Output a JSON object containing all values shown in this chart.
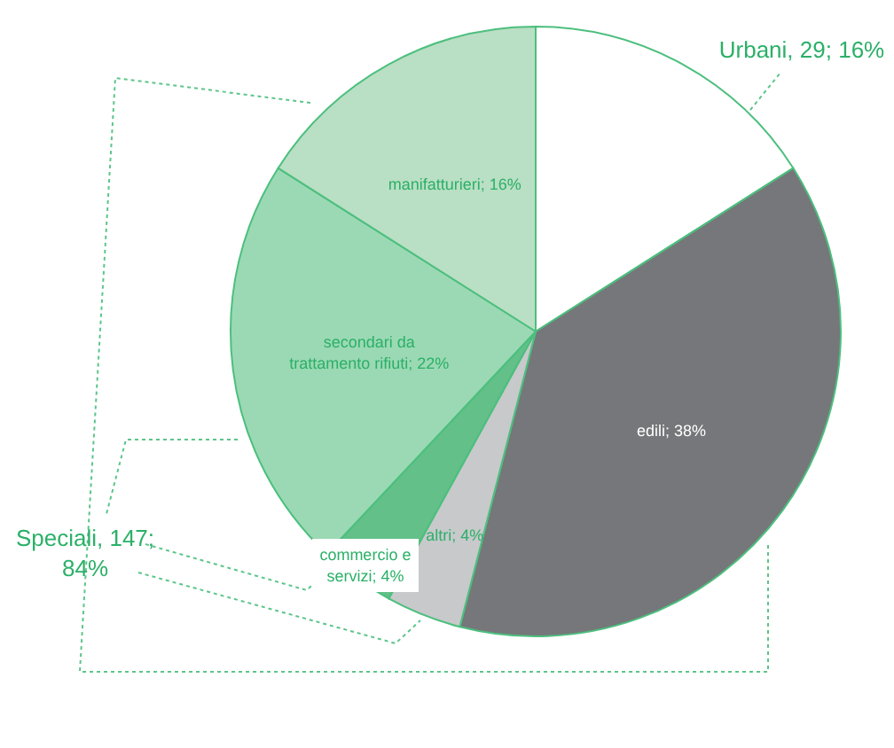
{
  "chart_data": {
    "type": "pie",
    "categories": [
      null,
      "edili",
      "altri",
      "commercio e servizi",
      "secondari da trattamento rifiuti",
      "manifatturieri"
    ],
    "values": [
      16,
      38,
      4,
      4,
      22,
      16
    ],
    "colors": [
      "#ffffff",
      "#76777a",
      "#c8c9cb",
      "#62c088",
      "#9bd9b4",
      "#b9dfc4"
    ],
    "value_labels": [
      null,
      "38%",
      "4%",
      "4%",
      "22%",
      "16%"
    ],
    "annotations": [
      "Urbani, 29; 16%",
      "Speciali, 147; 84%"
    ]
  }
}
